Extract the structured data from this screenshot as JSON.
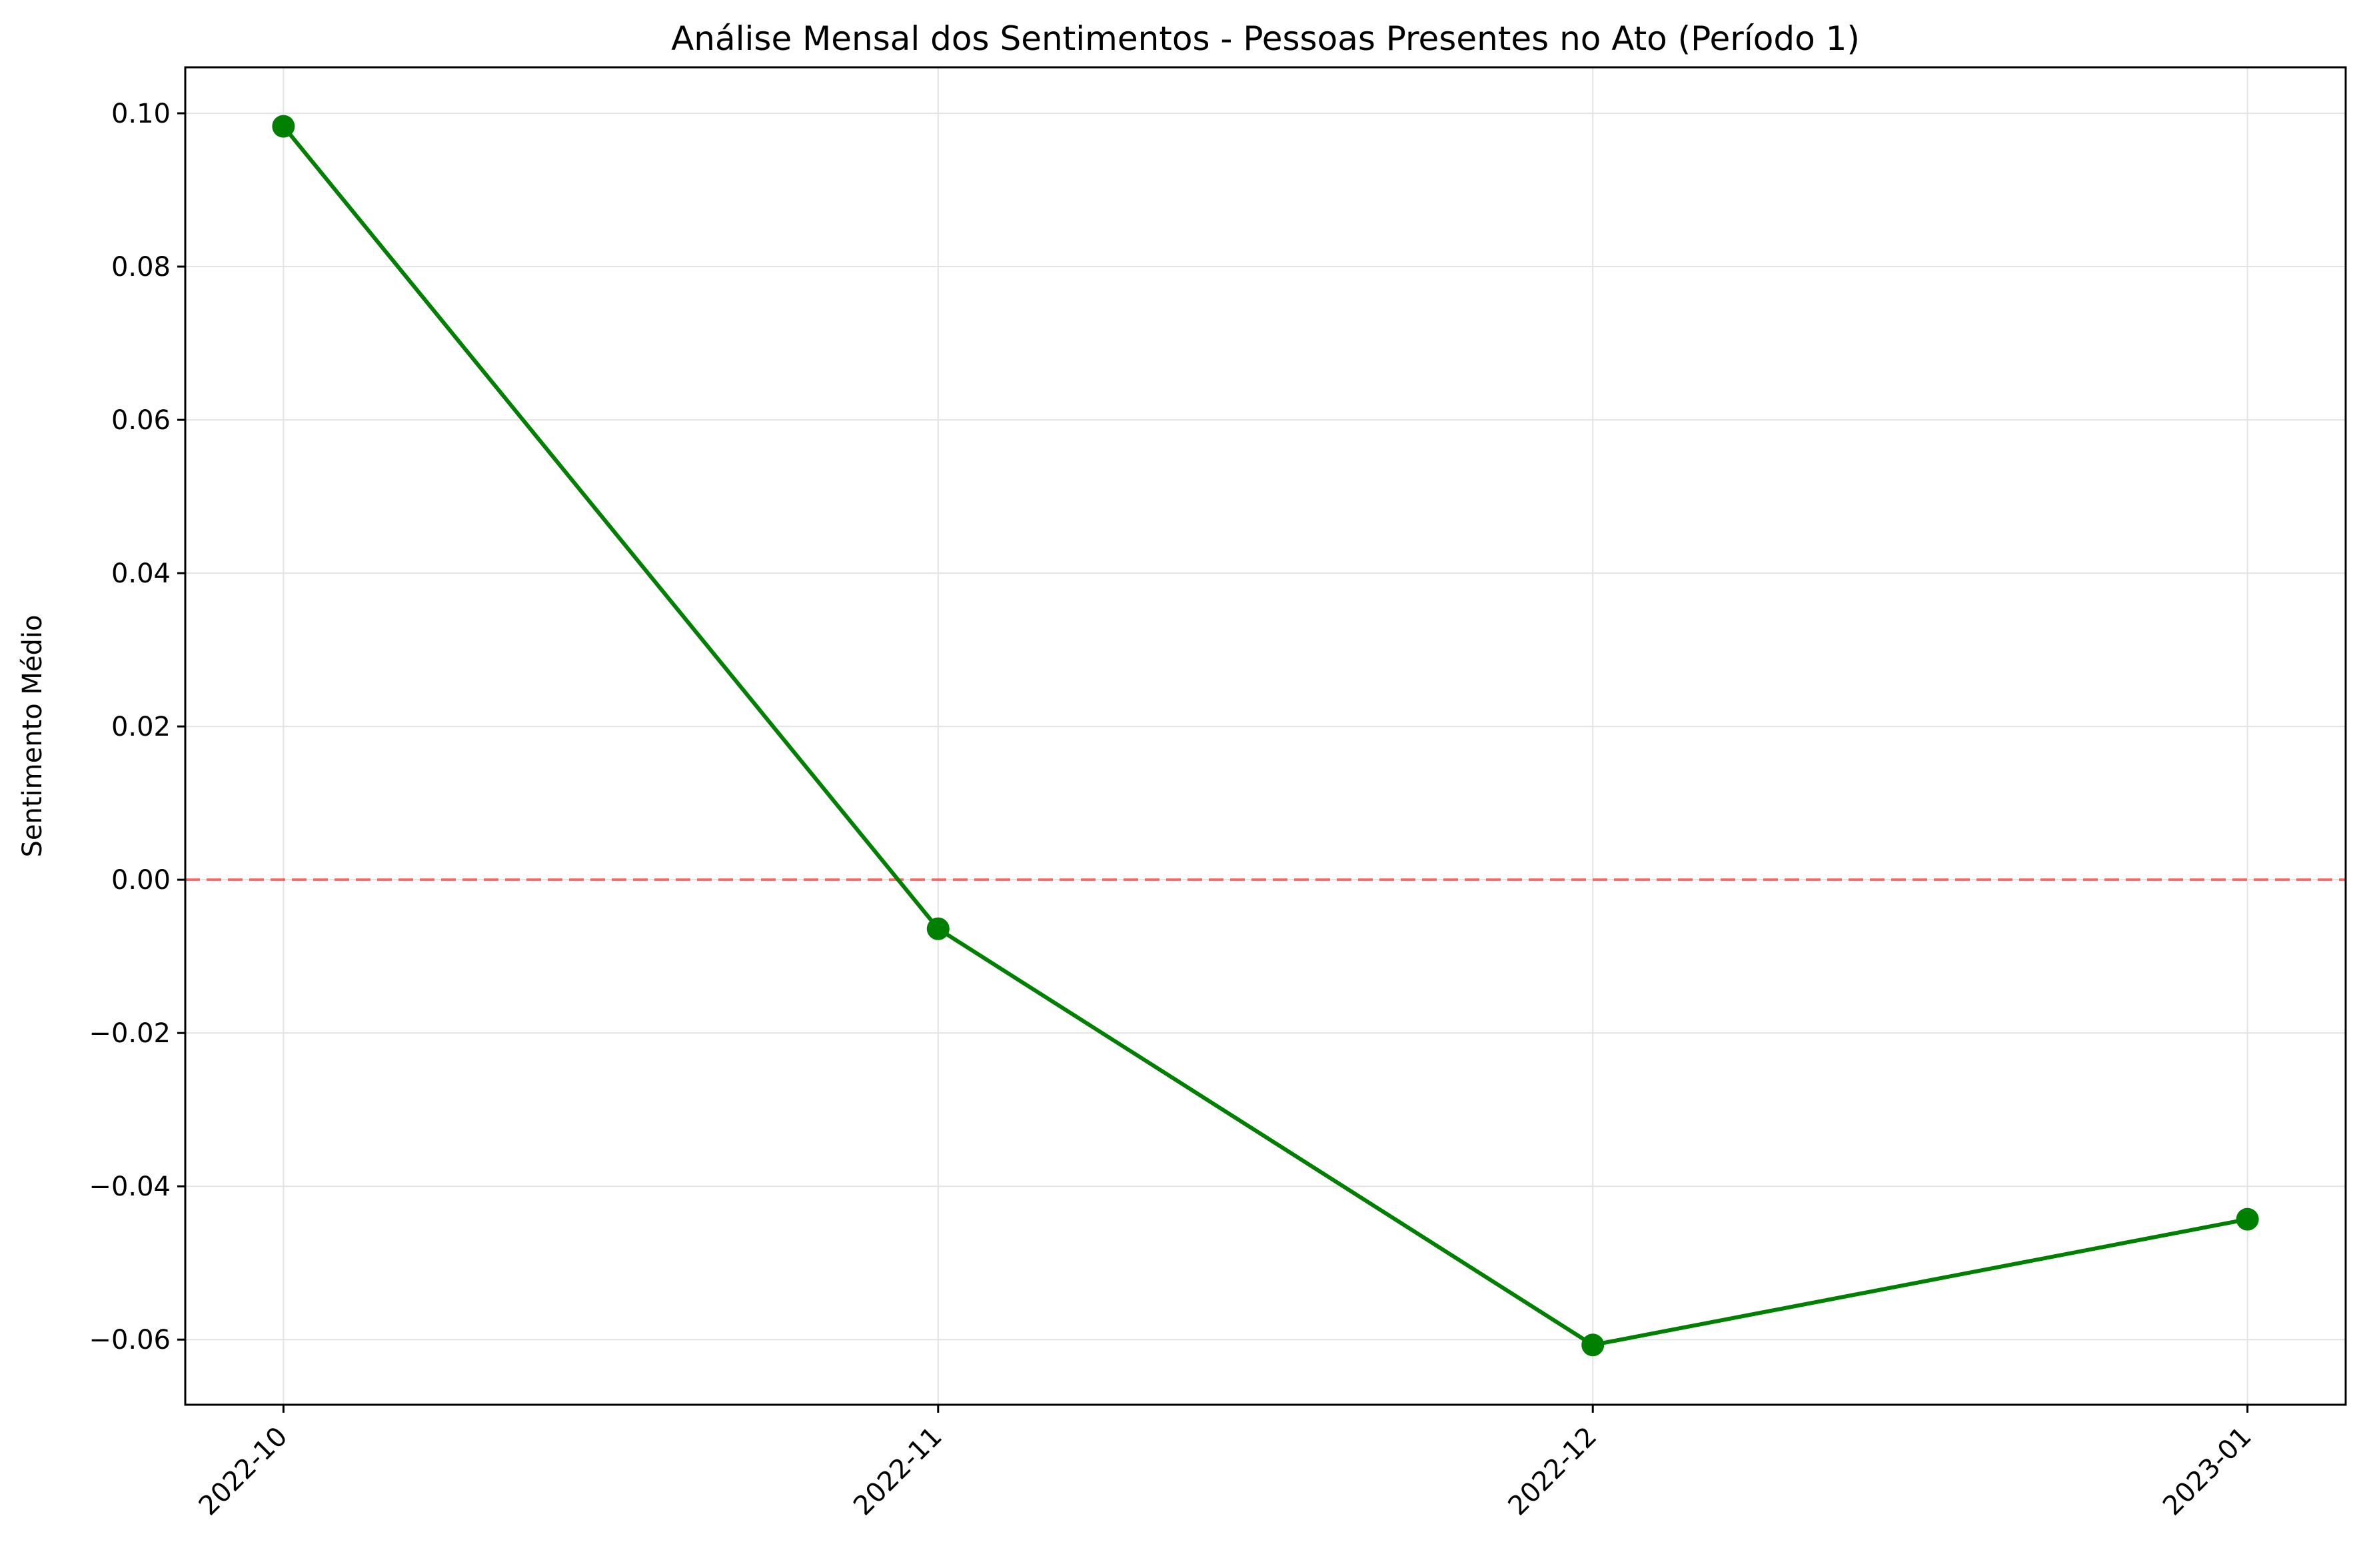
{
  "chart_data": {
    "type": "line",
    "title": "Análise Mensal dos Sentimentos - Pessoas Presentes no Ato (Período 1)",
    "xlabel": "",
    "ylabel": "Sentimento Médio",
    "categories": [
      "2022-10",
      "2022-11",
      "2022-12",
      "2023-01"
    ],
    "series": [
      {
        "values": [
          0.0983,
          -0.0064,
          -0.0607,
          -0.0443
        ],
        "color": "#008000",
        "marker": "circle"
      }
    ],
    "ylim": [
      -0.0685,
      0.106
    ],
    "yticks": [
      0.1,
      0.08,
      0.06,
      0.04,
      0.02,
      0.0,
      -0.02,
      -0.04,
      -0.06
    ],
    "ytick_labels": [
      "0.10",
      "0.08",
      "0.06",
      "0.04",
      "0.02",
      "0.00",
      "−0.02",
      "−0.04",
      "−0.06"
    ],
    "reference_line": {
      "y": 0,
      "color": "#ff0000",
      "style": "dashed"
    },
    "grid": true,
    "x_tick_rotation": 45
  }
}
